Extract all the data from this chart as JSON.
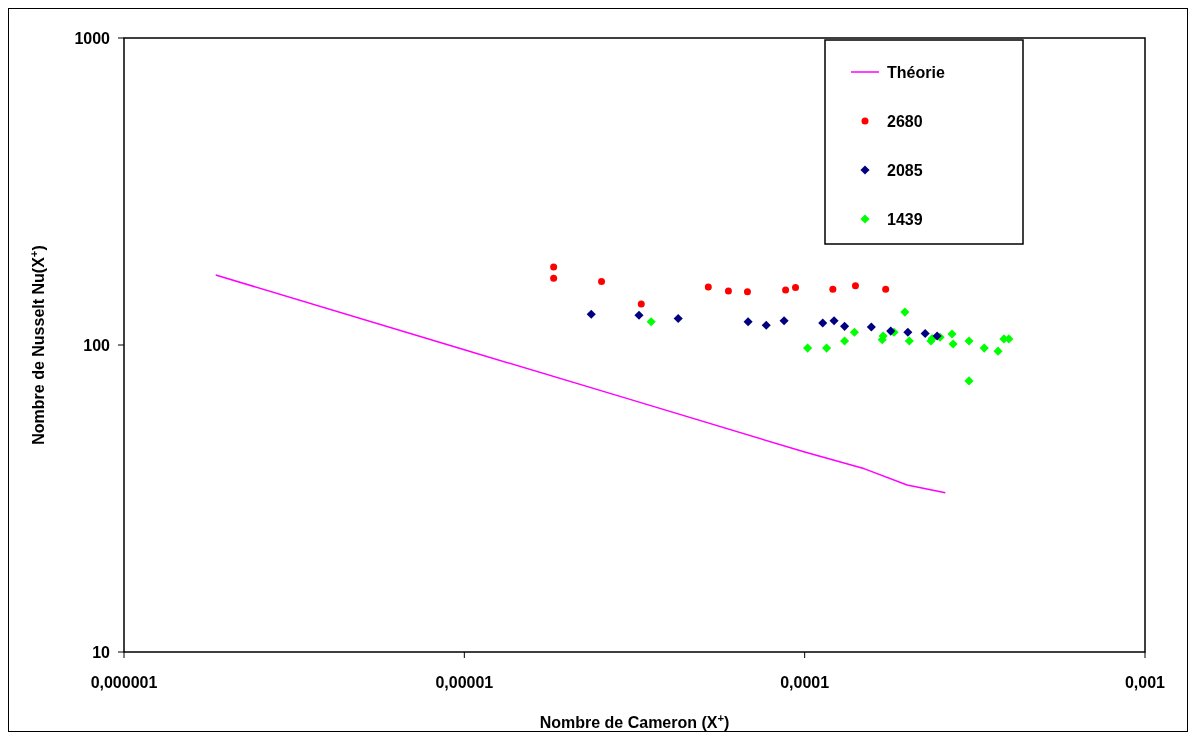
{
  "chart_data": {
    "type": "scatter",
    "xlabel": "Nombre de Cameron (X$^{+}$)",
    "ylabel": "Nombre de Nusselt Nu(X$^{+}$)",
    "log": "xy",
    "grid": false,
    "legend": "top right",
    "xlim": [
      1e-06,
      0.001
    ],
    "xticks": [
      {
        "value": 1e-06,
        "label": "0,000001"
      },
      {
        "value": 1e-05,
        "label": "0,00001"
      },
      {
        "value": 0.0001,
        "label": "0,0001"
      },
      {
        "value": 0.001,
        "label": "0,001"
      }
    ],
    "ylim": [
      10,
      1000
    ],
    "yticks": [
      10,
      100,
      1000
    ],
    "series": [
      {
        "name": "Théorie",
        "type": "line",
        "color": "#ff00ff",
        "marker": "none",
        "line_style": "solid",
        "x": [
          1.86e-06,
          1e-05,
          3e-05,
          0.0001,
          0.00015,
          0.0002,
          0.000259
        ],
        "values": [
          169,
          96.5,
          67,
          44.8,
          39.5,
          35,
          33
        ]
      },
      {
        "name": "2680",
        "type": "scatter",
        "color": "#ff0000",
        "marker": "circle",
        "x": [
          1.83e-05,
          1.83e-05,
          2.53e-05,
          3.31e-05,
          5.21e-05,
          5.97e-05,
          6.79e-05,
          8.79e-05,
          9.4e-05,
          0.000121,
          0.000141,
          0.000173
        ],
        "values": [
          179.5,
          165,
          161,
          136,
          154.5,
          150,
          149,
          151,
          154,
          152,
          156,
          152
        ]
      },
      {
        "name": "2085",
        "type": "scatter",
        "color": "#000080",
        "marker": "diamond",
        "x": [
          2.36e-05,
          3.26e-05,
          4.25e-05,
          6.82e-05,
          7.71e-05,
          8.7e-05,
          0.000113,
          0.000122,
          0.000131,
          0.000157,
          0.000179,
          0.000201,
          0.000226,
          0.000245
        ],
        "values": [
          126,
          125,
          122,
          119,
          116,
          120,
          118,
          120,
          115,
          114.5,
          111,
          110,
          109,
          107
        ]
      },
      {
        "name": "1439",
        "type": "scatter",
        "color": "#00ff00",
        "marker": "diamond",
        "x": [
          3.54e-05,
          0.000102,
          0.000116,
          0.000131,
          0.00014,
          0.000169,
          0.00017,
          0.000183,
          0.000197,
          0.000203,
          0.000235,
          0.000237,
          0.00025,
          0.000271,
          0.000273,
          0.000304,
          0.000304,
          0.000337,
          0.00037,
          0.000385,
          0.000398
        ],
        "values": [
          119,
          97.7,
          97.7,
          103,
          110,
          104,
          107,
          110,
          128,
          103,
          103,
          105,
          106,
          108.6,
          100.7,
          103,
          76.4,
          97.7,
          95.5,
          104.7,
          104.7
        ]
      }
    ]
  }
}
